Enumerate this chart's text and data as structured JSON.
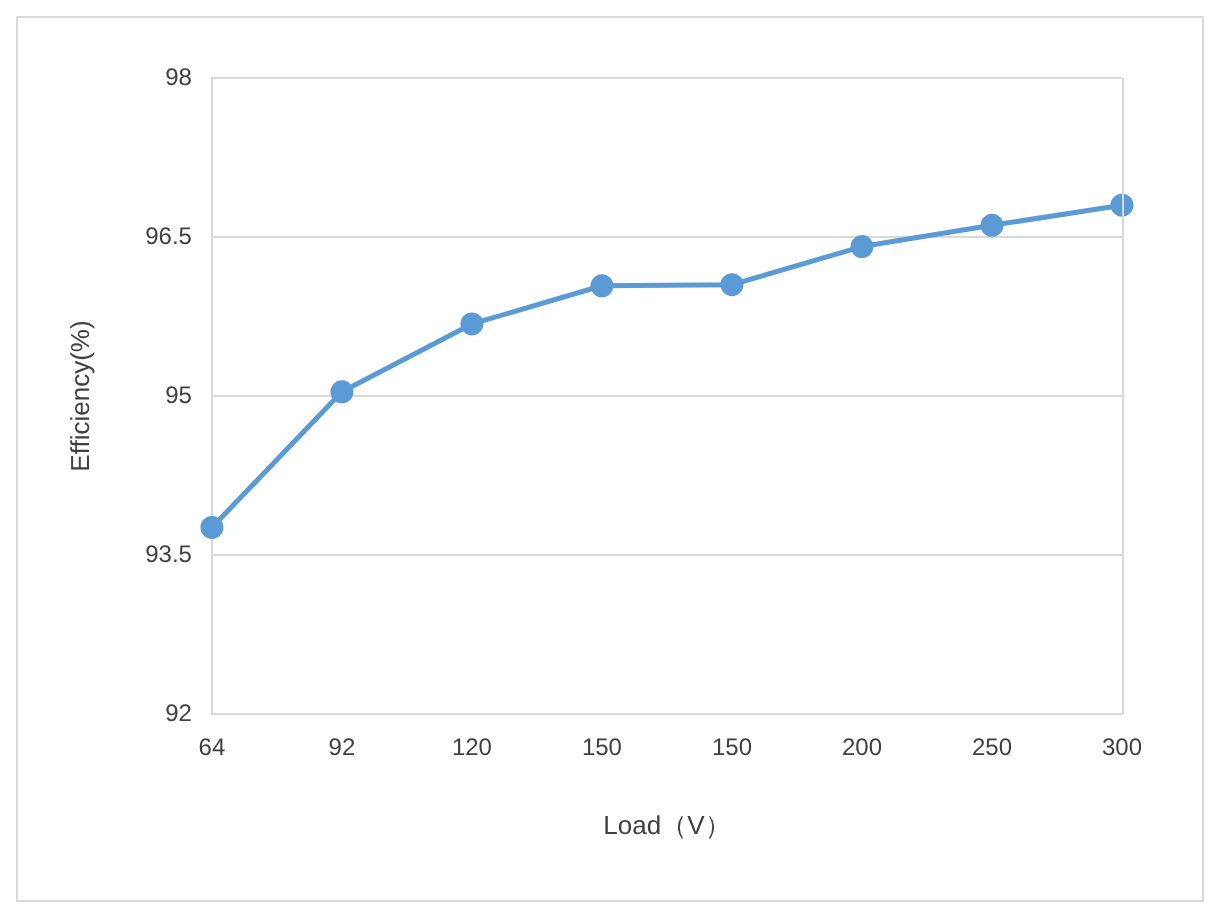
{
  "chart_data": {
    "type": "line",
    "xlabel": "Load（V）",
    "ylabel": "Efficiency(%)",
    "categories": [
      "64",
      "92",
      "120",
      "150",
      "150",
      "200",
      "250",
      "300"
    ],
    "series": [
      {
        "color": "#5b9bd5",
        "values": [
          93.76,
          95.04,
          95.68,
          96.04,
          96.05,
          96.41,
          96.61,
          96.8
        ]
      }
    ],
    "ylim": [
      92,
      98
    ],
    "yticks": [
      92,
      93.5,
      95,
      96.5,
      98
    ],
    "grid": "y",
    "legend": false,
    "marker": "circle",
    "line_style": "solid"
  }
}
